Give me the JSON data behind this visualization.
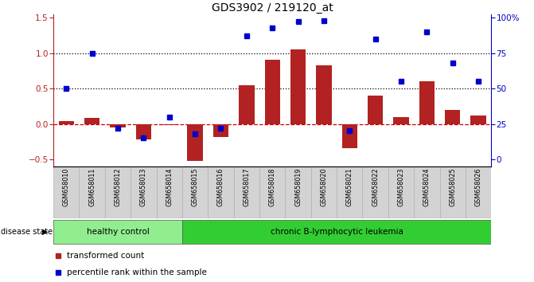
{
  "title": "GDS3902 / 219120_at",
  "samples": [
    "GSM658010",
    "GSM658011",
    "GSM658012",
    "GSM658013",
    "GSM658014",
    "GSM658015",
    "GSM658016",
    "GSM658017",
    "GSM658018",
    "GSM658019",
    "GSM658020",
    "GSM658021",
    "GSM658022",
    "GSM658023",
    "GSM658024",
    "GSM658025",
    "GSM658026"
  ],
  "bar_values": [
    0.04,
    0.08,
    -0.05,
    -0.22,
    -0.02,
    -0.52,
    -0.18,
    0.55,
    0.9,
    1.05,
    0.83,
    -0.34,
    0.4,
    0.1,
    0.6,
    0.2,
    0.12
  ],
  "blue_values_pct": [
    50,
    75,
    22,
    15,
    30,
    18,
    22,
    87,
    93,
    97,
    98,
    20,
    85,
    55,
    90,
    68,
    55
  ],
  "healthy_control_count": 5,
  "bar_color": "#B22222",
  "blue_color": "#0000CD",
  "ylim_left": [
    -0.6,
    1.55
  ],
  "yticks_left": [
    -0.5,
    0.0,
    0.5,
    1.0,
    1.5
  ],
  "yticks_right_pct": [
    0,
    25,
    50,
    75,
    100
  ],
  "ytick_labels_right": [
    "0",
    "25",
    "50",
    "75",
    "100%"
  ],
  "dotted_lines": [
    0.5,
    1.0
  ],
  "dashed_zero_color": "#CC0000",
  "hc_color": "#90EE90",
  "leuk_color": "#32CD32",
  "bg_color": "#FFFFFF"
}
